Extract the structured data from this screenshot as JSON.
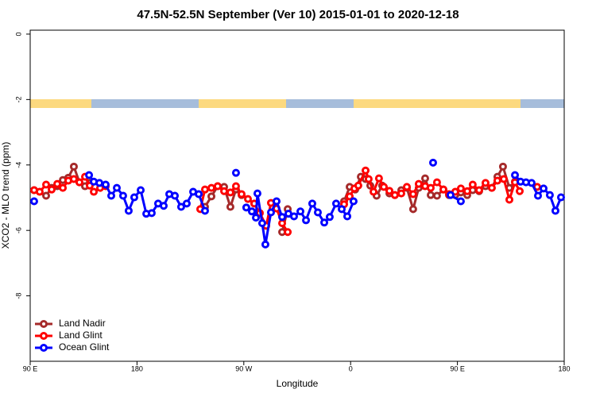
{
  "chart_data": {
    "type": "line",
    "title": "47.5N-52.5N September (Ver 10)   2015-01-01 to 2020-12-18",
    "x_label": "Longitude",
    "y_label": "XCO2 - MLO trend (ppm)",
    "xlim": [
      90,
      540
    ],
    "ylim": [
      -10,
      0.12
    ],
    "xticks": [
      {
        "value": 90,
        "label": "90 E"
      },
      {
        "value": 180,
        "label": "180"
      },
      {
        "value": 270,
        "label": "90 W"
      },
      {
        "value": 360,
        "label": "0"
      },
      {
        "value": 450,
        "label": "90 E"
      },
      {
        "value": 540,
        "label": "180"
      }
    ],
    "yticks": [
      0,
      -2,
      -4,
      -6,
      -8
    ],
    "legend": "bottom-left",
    "series": [
      {
        "name": "Land Nadir",
        "color": "#a52a2a",
        "x": [
          93.3,
          103.4,
          108.1,
          112.8,
          117.5,
          122.1,
          126.8,
          131.5,
          136.2,
          140.2,
          null,
          237.3,
          242.7,
          248.0,
          253.4,
          258.7,
          263.4,
          268.1,
          null,
          302.3,
          307.0,
          null,
          354.5,
          359.2,
          363.9,
          368.6,
          372.6,
          376.6,
          381.9,
          386.6,
          392.7,
          397.3,
          402.7,
          407.4,
          412.7,
          417.4,
          422.8,
          427.5,
          432.8,
          438.2,
          442.9,
          448.2,
          452.9,
          458.3,
          462.9,
          468.3,
          473.7,
          479.0,
          483.7,
          488.4,
          493.8,
          498.5
        ],
        "values": [
          -4.77,
          -4.94,
          -4.7,
          -4.65,
          -4.46,
          -4.39,
          -4.05,
          -4.53,
          -4.65,
          -4.55,
          null,
          -5.28,
          -4.96,
          -4.65,
          -4.67,
          -5.28,
          -4.75,
          -4.92,
          null,
          -6.05,
          -5.35,
          null,
          -5.11,
          -4.67,
          -4.75,
          -4.36,
          -4.43,
          -4.63,
          -4.94,
          -4.63,
          -4.87,
          -4.92,
          -4.77,
          -4.7,
          -5.35,
          -4.7,
          -4.41,
          -4.92,
          -4.94,
          -4.75,
          -4.92,
          -4.92,
          -4.84,
          -4.92,
          -4.77,
          -4.8,
          -4.65,
          -4.7,
          -4.36,
          -4.05,
          -4.7,
          -4.51
        ]
      },
      {
        "name": "Land Glint",
        "color": "#ff0000",
        "x": [
          93.3,
          98.0,
          103.4,
          108.1,
          112.8,
          117.5,
          122.1,
          126.8,
          131.5,
          136.2,
          140.2,
          143.6,
          148.9,
          153.6,
          null,
          233.3,
          237.3,
          242.7,
          248.0,
          253.4,
          258.7,
          263.4,
          268.1,
          273.5,
          278.8,
          283.5,
          288.9,
          292.9,
          297.6,
          302.3,
          307.0,
          null,
          354.5,
          359.2,
          363.2,
          366.5,
          372.6,
          375.2,
          379.3,
          383.9,
          388.0,
          392.7,
          397.3,
          402.7,
          407.4,
          412.7,
          417.4,
          422.8,
          427.5,
          432.8,
          438.2,
          442.9,
          448.2,
          452.9,
          458.3,
          462.9,
          468.3,
          473.7,
          479.0,
          483.7,
          489.1,
          493.8,
          498.5,
          502.5,
          null,
          517.2
        ],
        "values": [
          -4.77,
          -4.82,
          -4.6,
          -4.75,
          -4.58,
          -4.7,
          -4.48,
          -4.43,
          -4.53,
          -4.36,
          -4.63,
          -4.82,
          -4.7,
          -4.65,
          null,
          -5.35,
          -4.75,
          -4.7,
          -4.65,
          -4.8,
          -4.84,
          -4.65,
          -4.89,
          -5.04,
          -5.18,
          -5.47,
          -5.86,
          -5.16,
          -5.33,
          -5.78,
          -6.05,
          null,
          -5.2,
          -4.96,
          -4.72,
          -4.63,
          -4.17,
          -4.43,
          -4.82,
          -4.41,
          -4.67,
          -4.79,
          -4.92,
          -4.87,
          -4.67,
          -4.89,
          -4.58,
          -4.65,
          -4.7,
          -4.53,
          -4.75,
          -4.89,
          -4.82,
          -4.72,
          -4.8,
          -4.6,
          -4.77,
          -4.55,
          -4.7,
          -4.48,
          -4.43,
          -5.06,
          -4.53,
          -4.8,
          null,
          -4.67
        ]
      },
      {
        "name": "Ocean Glint",
        "color": "#0000ff",
        "x": [
          93.3,
          null,
          139.6,
          143.6,
          148.3,
          153.6,
          158.3,
          163.0,
          168.3,
          173.0,
          177.7,
          183.1,
          187.8,
          192.4,
          197.8,
          202.5,
          207.2,
          211.9,
          217.2,
          221.9,
          227.3,
          232.0,
          237.3,
          null,
          263.4,
          null,
          272.1,
          276.8,
          280.2,
          281.5,
          285.5,
          288.2,
          292.9,
          297.6,
          302.3,
          307.6,
          312.3,
          317.7,
          322.4,
          327.7,
          332.4,
          337.8,
          342.4,
          347.8,
          352.5,
          357.2,
          362.5,
          null,
          429.5,
          null,
          444.2,
          452.9,
          null,
          498.5,
          503.2,
          507.8,
          512.5,
          517.9,
          522.6,
          527.9,
          532.6,
          537.3
        ],
        "values": [
          -5.11,
          null,
          -4.31,
          -4.51,
          -4.55,
          -4.6,
          -4.94,
          -4.7,
          -4.94,
          -5.4,
          -4.99,
          -4.77,
          -5.49,
          -5.47,
          -5.18,
          -5.25,
          -4.89,
          -4.94,
          -5.28,
          -5.18,
          -4.82,
          -4.89,
          -5.4,
          null,
          -4.24,
          null,
          -5.3,
          -5.42,
          -5.61,
          -4.87,
          -5.78,
          -6.43,
          -5.45,
          -5.11,
          -5.59,
          -5.49,
          -5.57,
          -5.42,
          -5.69,
          -5.18,
          -5.45,
          -5.76,
          -5.59,
          -5.18,
          -5.35,
          -5.57,
          -5.11,
          null,
          -3.93,
          null,
          -4.92,
          -5.11,
          null,
          -4.31,
          -4.51,
          -4.53,
          -4.55,
          -4.94,
          -4.72,
          -4.92,
          -5.4,
          -4.99
        ]
      }
    ]
  }
}
